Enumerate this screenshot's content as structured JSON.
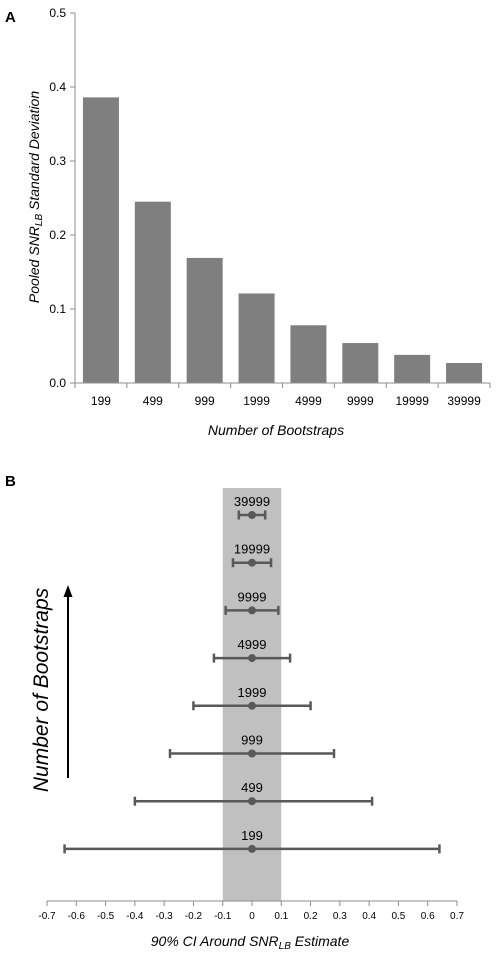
{
  "panel_a": {
    "label": "A"
  },
  "panel_b": {
    "label": "B"
  },
  "chart_data": [
    {
      "type": "bar",
      "title": "",
      "xlabel": "Number of Bootstraps",
      "ylabel_parts": {
        "pre": "Pooled SNR",
        "sub": "LB",
        "post": " Standard Deviation"
      },
      "categories": [
        "199",
        "499",
        "999",
        "1999",
        "4999",
        "9999",
        "19999",
        "39999"
      ],
      "values": [
        0.386,
        0.245,
        0.169,
        0.121,
        0.078,
        0.054,
        0.038,
        0.027
      ],
      "ylim": [
        0,
        0.5
      ],
      "yticks": [
        "0.0",
        "0.1",
        "0.2",
        "0.3",
        "0.4",
        "0.5"
      ],
      "bar_color": "#7f7f7f",
      "grid": false
    },
    {
      "type": "errorbar",
      "title": "",
      "xlabel_parts": {
        "pre": "90% CI Around SNR",
        "sub": "LB",
        "post": " Estimate"
      },
      "ylabel": "Number of Bootstraps",
      "categories": [
        "199",
        "499",
        "999",
        "1999",
        "4999",
        "9999",
        "19999",
        "39999"
      ],
      "center": [
        0,
        0,
        0,
        0,
        0,
        0,
        0,
        0
      ],
      "lower": [
        -0.64,
        -0.4,
        -0.28,
        -0.2,
        -0.13,
        -0.09,
        -0.065,
        -0.045
      ],
      "upper": [
        0.64,
        0.41,
        0.28,
        0.2,
        0.13,
        0.09,
        0.065,
        0.045
      ],
      "xlim": [
        -0.7,
        0.7
      ],
      "xticks": [
        "-0.7",
        "-0.6",
        "-0.5",
        "-0.4",
        "-0.3",
        "-0.2",
        "-0.1",
        "0",
        "0.1",
        "0.2",
        "0.3",
        "0.4",
        "0.5",
        "0.6",
        "0.7"
      ],
      "shaded_band": [
        -0.1,
        0.1
      ],
      "band_color": "#c0c0c0",
      "bar_color": "#595959",
      "arrow_direction": "up"
    }
  ]
}
